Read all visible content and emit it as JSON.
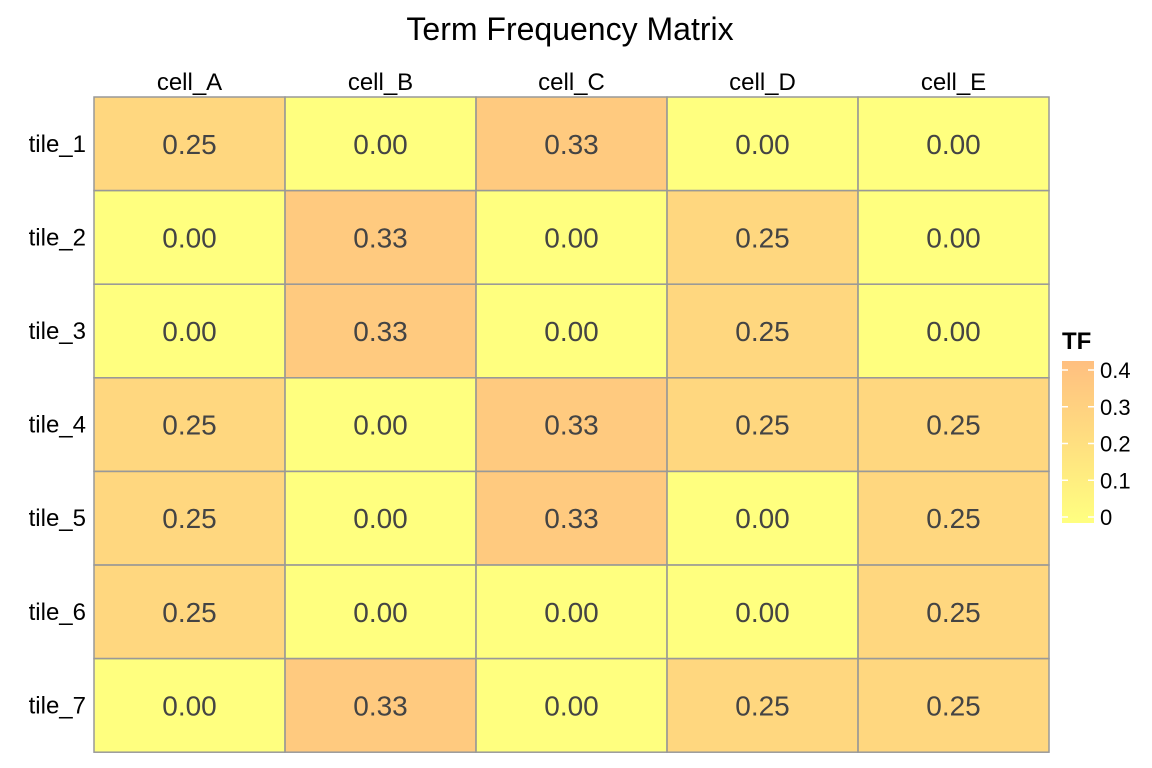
{
  "chart_data": {
    "type": "heatmap",
    "title": "Term Frequency Matrix",
    "columns": [
      "cell_A",
      "cell_B",
      "cell_C",
      "cell_D",
      "cell_E"
    ],
    "rows": [
      "tile_1",
      "tile_2",
      "tile_3",
      "tile_4",
      "tile_5",
      "tile_6",
      "tile_7"
    ],
    "values": [
      [
        0.25,
        0.0,
        0.33,
        0.0,
        0.0
      ],
      [
        0.0,
        0.33,
        0.0,
        0.25,
        0.0
      ],
      [
        0.0,
        0.33,
        0.0,
        0.25,
        0.0
      ],
      [
        0.25,
        0.0,
        0.33,
        0.25,
        0.25
      ],
      [
        0.25,
        0.0,
        0.33,
        0.0,
        0.25
      ],
      [
        0.25,
        0.0,
        0.0,
        0.0,
        0.25
      ],
      [
        0.0,
        0.33,
        0.0,
        0.25,
        0.25
      ]
    ],
    "cell_labels": [
      [
        "0.25",
        "0.00",
        "0.33",
        "0.00",
        "0.00"
      ],
      [
        "0.00",
        "0.33",
        "0.00",
        "0.25",
        "0.00"
      ],
      [
        "0.00",
        "0.33",
        "0.00",
        "0.25",
        "0.00"
      ],
      [
        "0.25",
        "0.00",
        "0.33",
        "0.25",
        "0.25"
      ],
      [
        "0.25",
        "0.00",
        "0.33",
        "0.00",
        "0.25"
      ],
      [
        "0.25",
        "0.00",
        "0.00",
        "0.00",
        "0.25"
      ],
      [
        "0.00",
        "0.33",
        "0.00",
        "0.25",
        "0.25"
      ]
    ],
    "legend": {
      "title": "TF",
      "ticks": [
        0,
        0.1,
        0.2,
        0.3,
        0.4
      ],
      "tick_labels": [
        "0",
        "0.1",
        "0.2",
        "0.3",
        "0.4"
      ],
      "range": [
        0,
        0.4
      ],
      "placement": "right"
    },
    "colors": {
      "low": "#FFFF00",
      "high": "#FF7F00",
      "cell_opacity": 0.5,
      "tile_border": "#999999",
      "label_color": "#444444"
    },
    "grid": false
  }
}
